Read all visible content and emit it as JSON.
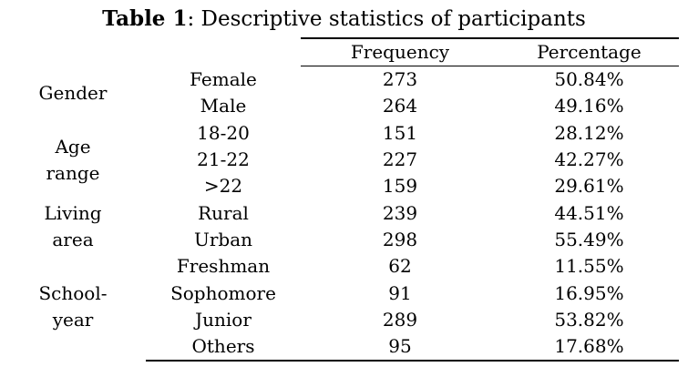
{
  "caption": {
    "label": "Table 1",
    "text": ": Descriptive statistics of participants"
  },
  "header": {
    "frequency": "Frequency",
    "percentage": "Percentage"
  },
  "groups": [
    {
      "name": "Gender",
      "rows": [
        {
          "category": "Female",
          "frequency": "273",
          "percentage": "50.84%"
        },
        {
          "category": "Male",
          "frequency": "264",
          "percentage": "49.16%"
        }
      ]
    },
    {
      "name": "Age range",
      "rows": [
        {
          "category": "18-20",
          "frequency": "151",
          "percentage": "28.12%"
        },
        {
          "category": "21-22",
          "frequency": "227",
          "percentage": "42.27%"
        },
        {
          "category": ">22",
          "frequency": "159",
          "percentage": "29.61%"
        }
      ]
    },
    {
      "name": "Living area",
      "rows": [
        {
          "category": "Rural",
          "frequency": "239",
          "percentage": "44.51%"
        },
        {
          "category": "Urban",
          "frequency": "298",
          "percentage": "55.49%"
        }
      ]
    },
    {
      "name": "School-year",
      "rows": [
        {
          "category": "Freshman",
          "frequency": "62",
          "percentage": "11.55%"
        },
        {
          "category": "Sophomore",
          "frequency": "91",
          "percentage": "16.95%"
        },
        {
          "category": "Junior",
          "frequency": "289",
          "percentage": "53.82%"
        },
        {
          "category": "Others",
          "frequency": "95",
          "percentage": "17.68%"
        }
      ]
    }
  ]
}
